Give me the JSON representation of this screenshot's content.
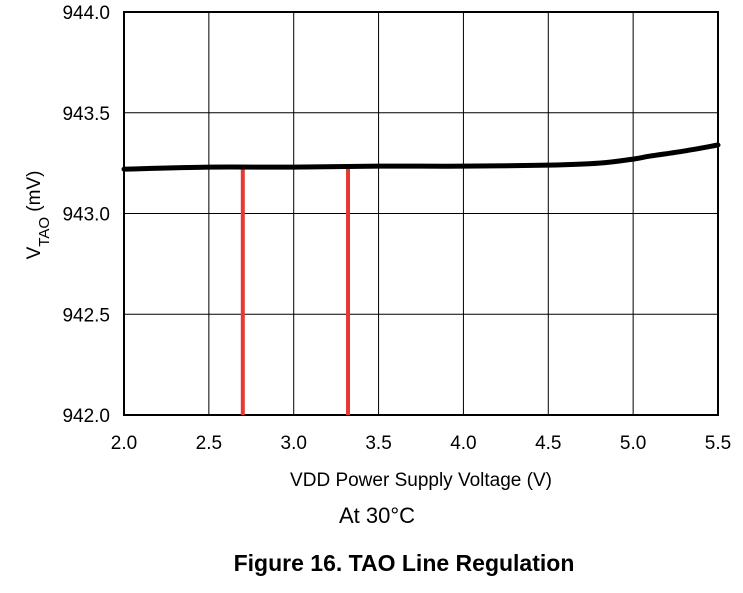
{
  "chart_data": {
    "type": "line",
    "title": "",
    "xlabel": "VDD Power Supply Voltage (V)",
    "ylabel_main": "V",
    "ylabel_sub": "TAO",
    "ylabel_unit": " (mV)",
    "xlim": [
      2.0,
      5.5
    ],
    "ylim": [
      942.0,
      944.0
    ],
    "x_ticks": [
      "2.0",
      "2.5",
      "3.0",
      "3.5",
      "4.0",
      "4.5",
      "5.0",
      "5.5"
    ],
    "y_ticks": [
      "944.0",
      "943.5",
      "943.0",
      "942.5",
      "942.0"
    ],
    "grid": true,
    "series": [
      {
        "name": "VTAO",
        "color": "#000000",
        "x": [
          2.0,
          2.5,
          3.0,
          3.5,
          4.0,
          4.5,
          4.8,
          5.0,
          5.1,
          5.3,
          5.5
        ],
        "y": [
          943.22,
          943.23,
          943.23,
          943.235,
          943.235,
          943.24,
          943.25,
          943.27,
          943.285,
          943.31,
          943.34
        ]
      }
    ],
    "markers": [
      {
        "x": 2.7,
        "y_top": 943.23,
        "color": "#e53935"
      },
      {
        "x": 3.32,
        "y_top": 943.23,
        "color": "#e53935"
      }
    ]
  },
  "condition": "At 30°C",
  "caption": "Figure 16. TAO Line Regulation"
}
